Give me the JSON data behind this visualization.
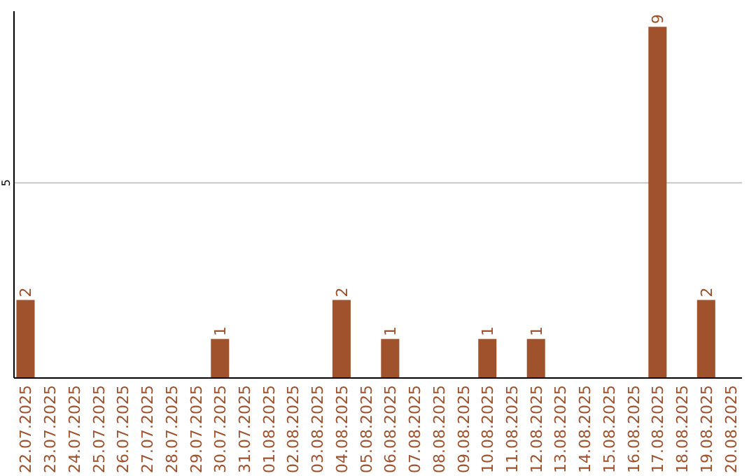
{
  "chart_data": {
    "type": "bar",
    "categories": [
      "22.07.2025",
      "23.07.2025",
      "24.07.2025",
      "25.07.2025",
      "26.07.2025",
      "27.07.2025",
      "28.07.2025",
      "29.07.2025",
      "30.07.2025",
      "31.07.2025",
      "01.08.2025",
      "02.08.2025",
      "03.08.2025",
      "04.08.2025",
      "05.08.2025",
      "06.08.2025",
      "07.08.2025",
      "08.08.2025",
      "09.08.2025",
      "10.08.2025",
      "11.08.2025",
      "12.08.2025",
      "13.08.2025",
      "14.08.2025",
      "15.08.2025",
      "16.08.2025",
      "17.08.2025",
      "18.08.2025",
      "19.08.2025",
      "20.08.2025"
    ],
    "values": [
      2,
      0,
      0,
      0,
      0,
      0,
      0,
      0,
      1,
      0,
      0,
      0,
      0,
      2,
      0,
      1,
      0,
      0,
      0,
      1,
      0,
      1,
      0,
      0,
      0,
      0,
      9,
      0,
      2,
      0
    ],
    "value_labels": [
      "2",
      null,
      null,
      null,
      null,
      null,
      null,
      null,
      "1",
      null,
      null,
      null,
      null,
      "2",
      null,
      "1",
      null,
      null,
      null,
      "1",
      null,
      "1",
      null,
      null,
      null,
      null,
      "9",
      null,
      "2",
      null
    ],
    "color": "#a0522d",
    "ylim": [
      0,
      9.4
    ],
    "yticks": [
      5
    ],
    "grid": "y"
  }
}
